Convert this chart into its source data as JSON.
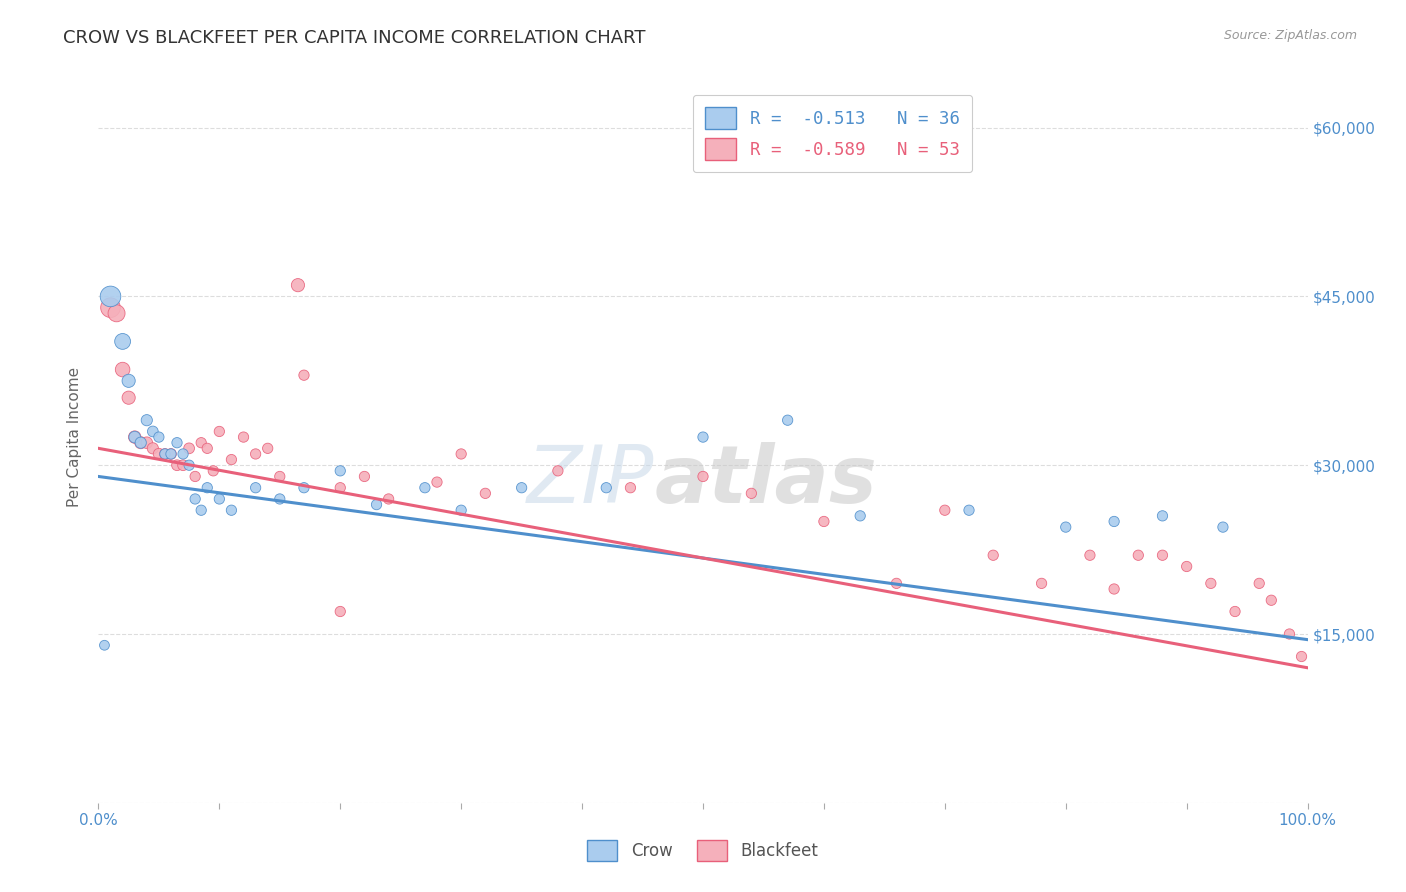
{
  "title": "CROW VS BLACKFEET PER CAPITA INCOME CORRELATION CHART",
  "source": "Source: ZipAtlas.com",
  "ylabel": "Per Capita Income",
  "yticks": [
    0,
    15000,
    30000,
    45000,
    60000
  ],
  "ytick_labels": [
    "",
    "$15,000",
    "$30,000",
    "$45,000",
    "$60,000"
  ],
  "background_color": "#ffffff",
  "watermark_zip": "ZIP",
  "watermark_atlas": "atlas",
  "legend_blue_label": "R =  -0.513   N = 36",
  "legend_pink_label": "R =  -0.589   N = 53",
  "legend_crow_label": "Crow",
  "legend_blackfeet_label": "Blackfeet",
  "crow_color": "#aaccee",
  "blackfeet_color": "#f5b0bb",
  "crow_line_color": "#4f8fcc",
  "blackfeet_line_color": "#e8607a",
  "crow_scatter_x": [
    0.005,
    0.01,
    0.02,
    0.025,
    0.03,
    0.035,
    0.04,
    0.045,
    0.05,
    0.055,
    0.06,
    0.065,
    0.07,
    0.075,
    0.08,
    0.085,
    0.09,
    0.1,
    0.11,
    0.13,
    0.15,
    0.17,
    0.2,
    0.23,
    0.27,
    0.3,
    0.35,
    0.42,
    0.5,
    0.57,
    0.63,
    0.72,
    0.8,
    0.84,
    0.88,
    0.93
  ],
  "crow_scatter_y": [
    14000,
    45000,
    41000,
    37500,
    32500,
    32000,
    34000,
    33000,
    32500,
    31000,
    31000,
    32000,
    31000,
    30000,
    27000,
    26000,
    28000,
    27000,
    26000,
    28000,
    27000,
    28000,
    29500,
    26500,
    28000,
    26000,
    28000,
    28000,
    32500,
    34000,
    25500,
    26000,
    24500,
    25000,
    25500,
    24500
  ],
  "crow_scatter_size": [
    50,
    220,
    130,
    90,
    70,
    65,
    65,
    60,
    55,
    55,
    55,
    55,
    55,
    55,
    55,
    55,
    55,
    55,
    55,
    55,
    55,
    55,
    55,
    55,
    55,
    55,
    55,
    55,
    55,
    55,
    55,
    55,
    55,
    55,
    55,
    55
  ],
  "blackfeet_scatter_x": [
    0.01,
    0.015,
    0.02,
    0.025,
    0.03,
    0.035,
    0.04,
    0.045,
    0.05,
    0.055,
    0.06,
    0.065,
    0.07,
    0.075,
    0.08,
    0.085,
    0.09,
    0.095,
    0.1,
    0.11,
    0.12,
    0.13,
    0.14,
    0.15,
    0.17,
    0.2,
    0.22,
    0.24,
    0.28,
    0.32,
    0.38,
    0.44,
    0.5,
    0.54,
    0.6,
    0.66,
    0.7,
    0.74,
    0.78,
    0.82,
    0.84,
    0.86,
    0.88,
    0.9,
    0.92,
    0.94,
    0.96,
    0.97,
    0.985,
    0.995,
    0.2,
    0.3,
    0.165
  ],
  "blackfeet_scatter_y": [
    44000,
    43500,
    38500,
    36000,
    32500,
    32000,
    32000,
    31500,
    31000,
    31000,
    31000,
    30000,
    30000,
    31500,
    29000,
    32000,
    31500,
    29500,
    33000,
    30500,
    32500,
    31000,
    31500,
    29000,
    38000,
    28000,
    29000,
    27000,
    28500,
    27500,
    29500,
    28000,
    29000,
    27500,
    25000,
    19500,
    26000,
    22000,
    19500,
    22000,
    19000,
    22000,
    22000,
    21000,
    19500,
    17000,
    19500,
    18000,
    15000,
    13000,
    17000,
    31000,
    46000
  ],
  "blackfeet_scatter_size": [
    200,
    150,
    110,
    90,
    80,
    75,
    70,
    65,
    65,
    60,
    60,
    60,
    60,
    60,
    55,
    55,
    55,
    55,
    55,
    55,
    55,
    55,
    55,
    55,
    55,
    55,
    55,
    55,
    55,
    55,
    55,
    55,
    55,
    55,
    55,
    55,
    55,
    55,
    55,
    55,
    55,
    55,
    55,
    55,
    55,
    55,
    55,
    55,
    55,
    55,
    55,
    55,
    90
  ],
  "crow_trend_x": [
    0.0,
    1.0
  ],
  "crow_trend_y": [
    29000,
    14500
  ],
  "blackfeet_trend_x": [
    0.0,
    1.0
  ],
  "blackfeet_trend_y": [
    31500,
    12000
  ],
  "xlim": [
    0.0,
    1.0
  ],
  "ylim": [
    0,
    65000
  ],
  "grid_color": "#dddddd",
  "title_fontsize": 13,
  "axis_label_fontsize": 11,
  "tick_fontsize": 11,
  "right_tick_color": "#4f8fcc",
  "bottom_tick_color": "#4f8fcc"
}
